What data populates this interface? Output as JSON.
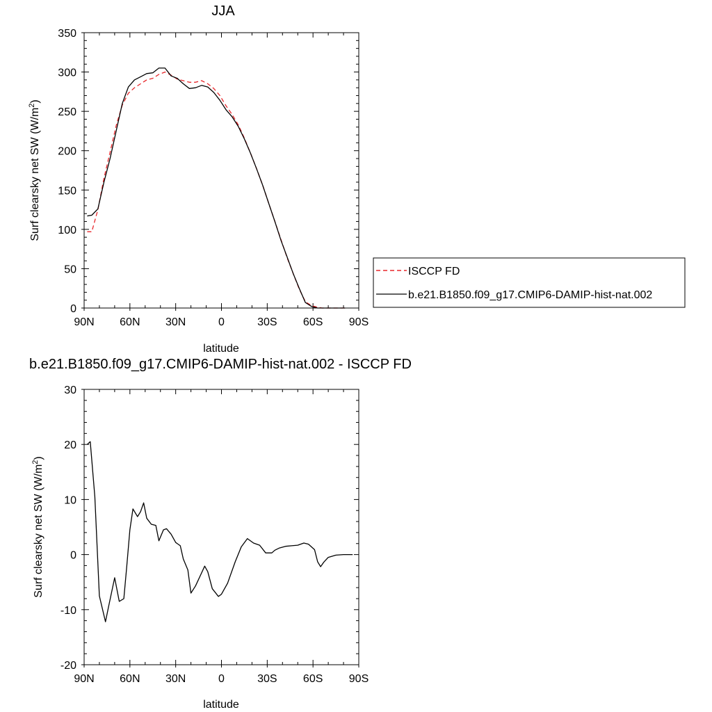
{
  "chart_data": [
    {
      "type": "line",
      "title": "JJA",
      "xlabel": "latitude",
      "ylabel": "Surf clearsky net SW (W/m",
      "ylabel_sup": "2",
      "ylabel_close": ")",
      "xlim": [
        90,
        -90
      ],
      "ylim": [
        0,
        350
      ],
      "x_ticks": [
        90,
        60,
        30,
        0,
        -30,
        -60,
        -90
      ],
      "x_tick_labels": [
        "90N",
        "60N",
        "30N",
        "0",
        "30S",
        "60S",
        "90S"
      ],
      "y_ticks": [
        0,
        50,
        100,
        150,
        200,
        250,
        300,
        350
      ],
      "y_tick_labels": [
        "0",
        "50",
        "100",
        "150",
        "200",
        "250",
        "300",
        "350"
      ],
      "legend_position": "right",
      "series": [
        {
          "name": "ISCCP FD",
          "color": "#e8262a",
          "dash": "dashed",
          "x": [
            88,
            85,
            81,
            77,
            73,
            69,
            65,
            61,
            57,
            53,
            49,
            45,
            41,
            37,
            33,
            29,
            25,
            21,
            17,
            13,
            9,
            5,
            1,
            -3,
            -7,
            -11,
            -15,
            -19,
            -23,
            -27,
            -31,
            -35,
            -39,
            -43,
            -47,
            -51,
            -55,
            -59,
            -63,
            -66,
            -69,
            -73,
            -77,
            -81
          ],
          "y": [
            97,
            97,
            125,
            165,
            198,
            232,
            258,
            273,
            280,
            285,
            290,
            292,
            297,
            300,
            296,
            291,
            289,
            287,
            287,
            289,
            285,
            279,
            270,
            257,
            246,
            233,
            216,
            197,
            177,
            156,
            133,
            110,
            87,
            64,
            44,
            24,
            8,
            3,
            1,
            0,
            0,
            0,
            0,
            0
          ]
        },
        {
          "name": "b.e21.B1850.f09_g17.CMIP6-DAMIP-hist-nat.002",
          "color": "#000000",
          "dash": "solid",
          "x": [
            88,
            85,
            81,
            77,
            73,
            69,
            65,
            61,
            57,
            53,
            49,
            45,
            41,
            37,
            33,
            29,
            25,
            21,
            17,
            13,
            9,
            5,
            1,
            -3,
            -7,
            -11,
            -15,
            -19,
            -23,
            -27,
            -31,
            -35,
            -39,
            -43,
            -47,
            -51,
            -55,
            -59,
            -63,
            -66,
            -69,
            -73,
            -77,
            -81
          ],
          "y": [
            117,
            118,
            126,
            160,
            190,
            225,
            260,
            281,
            290,
            294,
            298,
            299,
            305,
            305,
            295,
            292,
            285,
            279,
            280,
            283,
            281,
            274,
            264,
            252,
            243,
            231,
            215,
            197,
            177,
            156,
            133,
            110,
            86,
            65,
            44,
            25,
            7,
            2,
            0,
            0,
            0,
            0,
            0,
            0
          ]
        }
      ]
    },
    {
      "type": "line",
      "title": "b.e21.B1850.f09_g17.CMIP6-DAMIP-hist-nat.002 - ISCCP FD",
      "xlabel": "latitude",
      "ylabel": "Surf clearsky net SW (W/m",
      "ylabel_sup": "2",
      "ylabel_close": ")",
      "xlim": [
        90,
        -90
      ],
      "ylim": [
        -20,
        30
      ],
      "x_ticks": [
        90,
        60,
        30,
        0,
        -30,
        -60,
        -90
      ],
      "x_tick_labels": [
        "90N",
        "60N",
        "30N",
        "0",
        "30S",
        "60S",
        "90S"
      ],
      "y_ticks": [
        -20,
        -10,
        0,
        10,
        20,
        30
      ],
      "y_tick_labels": [
        "-20",
        "-10",
        "0",
        "10",
        "20",
        "30"
      ],
      "series": [
        {
          "color": "#000000",
          "dash": "solid",
          "x": [
            88,
            86,
            83,
            80,
            76,
            74,
            70,
            67,
            64,
            62,
            60,
            58,
            55,
            53,
            51,
            49,
            46,
            43,
            41,
            38,
            36,
            33,
            30,
            27,
            25,
            22,
            20,
            17,
            14,
            11,
            9,
            6,
            4,
            2,
            0,
            -4,
            -9,
            -13,
            -17,
            -21,
            -25,
            -29,
            -33,
            -35,
            -38,
            -42,
            -46,
            -50,
            -54,
            -57,
            -61,
            -63,
            -65,
            -67,
            -70,
            -75,
            -80,
            -86
          ],
          "y": [
            20,
            20.5,
            10.5,
            -7.5,
            -12.2,
            -9.5,
            -4.2,
            -8.5,
            -8,
            -2,
            4.5,
            8.3,
            6.9,
            7.8,
            9.4,
            6.6,
            5.5,
            5.3,
            2.5,
            4.5,
            4.7,
            3.7,
            2.2,
            1.6,
            -0.8,
            -2.8,
            -7,
            -5.7,
            -3.9,
            -2.1,
            -3.1,
            -6.2,
            -6.9,
            -7.6,
            -7.2,
            -5.2,
            -1.3,
            1.4,
            2.9,
            2.1,
            1.7,
            0.3,
            0.3,
            0.8,
            1.2,
            1.5,
            1.6,
            1.7,
            2.1,
            1.9,
            0.9,
            -1.3,
            -2.2,
            -1.4,
            -0.5,
            -0.1,
            0,
            0
          ]
        }
      ]
    }
  ]
}
